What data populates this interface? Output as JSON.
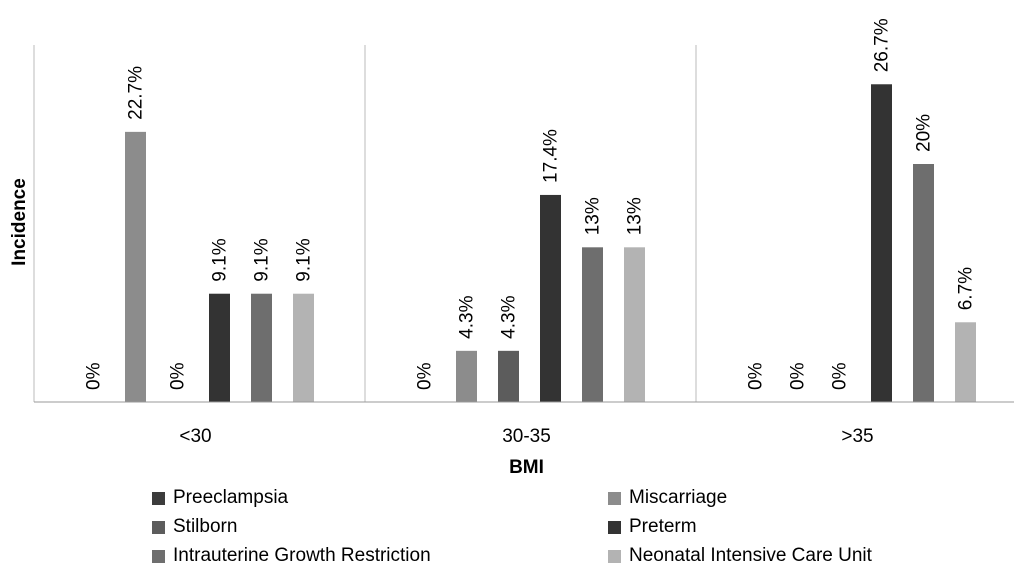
{
  "chart_data": {
    "type": "bar",
    "xlabel": "BMI",
    "ylabel": "Incidence",
    "ylim": [
      0,
      30
    ],
    "grid": false,
    "legend_position": "bottom",
    "categories": [
      "<30",
      "30-35",
      ">35"
    ],
    "series": [
      {
        "name": "Preeclampsia",
        "color": "#3c3c3c",
        "values": [
          0,
          0,
          0
        ],
        "labels": [
          "0%",
          "0%",
          "0%"
        ]
      },
      {
        "name": "Miscarriage",
        "color": "#8c8c8c",
        "values": [
          22.7,
          4.3,
          0
        ],
        "labels": [
          "22.7%",
          "4.3%",
          "0%"
        ]
      },
      {
        "name": "Stilborn",
        "color": "#5c5c5c",
        "values": [
          0,
          4.3,
          0
        ],
        "labels": [
          "0%",
          "4.3%",
          "0%"
        ]
      },
      {
        "name": "Preterm",
        "color": "#333333",
        "values": [
          9.1,
          17.4,
          26.7
        ],
        "labels": [
          "9.1%",
          "17.4%",
          "26.7%"
        ]
      },
      {
        "name": "Intrauterine Growth Restriction",
        "color": "#6e6e6e",
        "values": [
          9.1,
          13,
          20
        ],
        "labels": [
          "9.1%",
          "13%",
          "20%"
        ]
      },
      {
        "name": "Neonatal Intensive Care Unit",
        "color": "#b3b3b3",
        "values": [
          9.1,
          13,
          6.7
        ],
        "labels": [
          "9.1%",
          "13%",
          "6.7%"
        ]
      }
    ]
  }
}
